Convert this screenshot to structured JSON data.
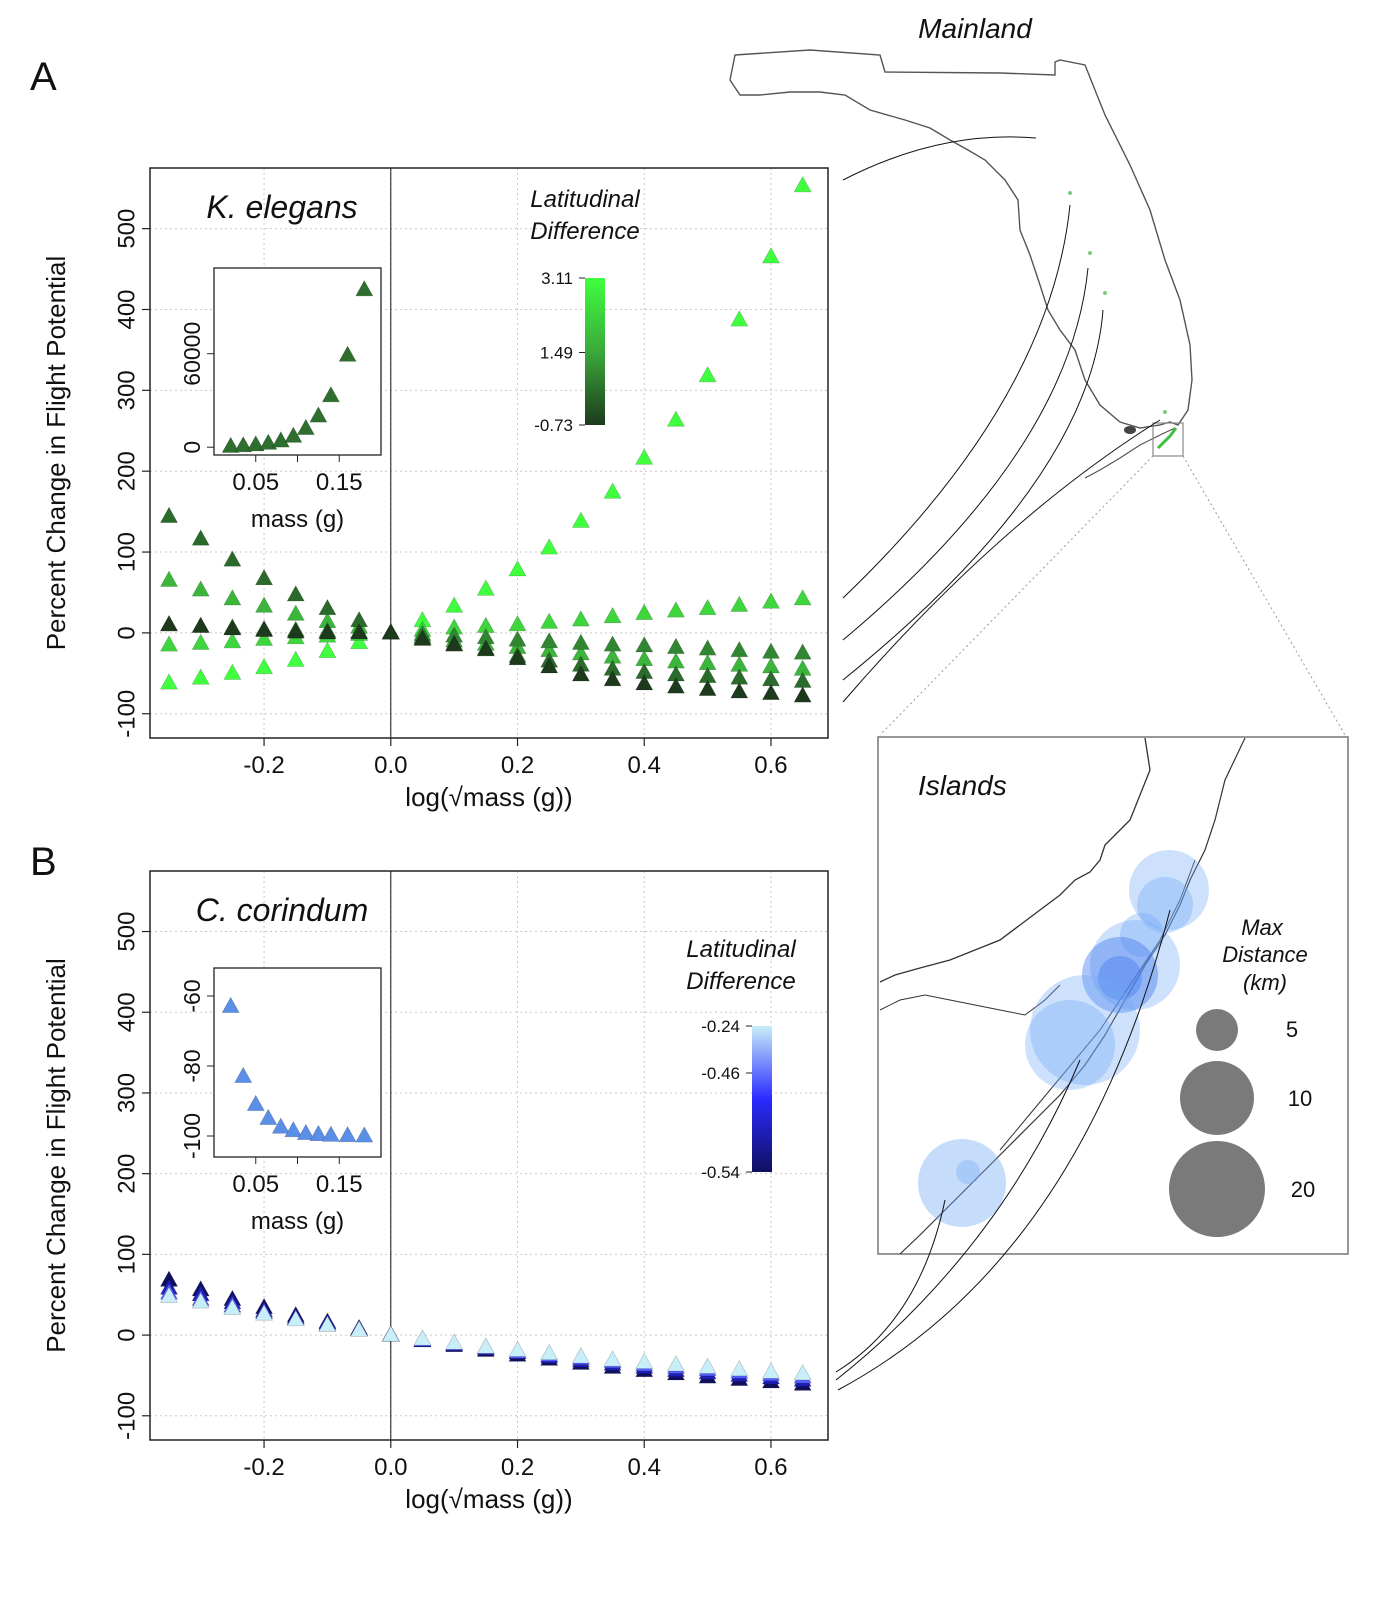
{
  "panels": {
    "A": {
      "letter": "A"
    },
    "B": {
      "letter": "B"
    }
  },
  "map": {
    "mainland_label": "Mainland",
    "islands_label": "Islands",
    "legend": {
      "title_lines": [
        "Max",
        "Distance",
        "(km)"
      ],
      "sizes": [
        {
          "label": "5",
          "value": 5
        },
        {
          "label": "10",
          "value": 10
        },
        {
          "label": "20",
          "value": 20
        }
      ]
    },
    "circle_color": "#6fa8f5"
  },
  "chart_data": [
    {
      "id": "A",
      "type": "scatter",
      "species": "K. elegans",
      "xlabel": "log(√mass (g))",
      "ylabel": "Percent Change in Flight Potential",
      "xlim": [
        -0.38,
        0.69
      ],
      "ylim": [
        -130,
        575
      ],
      "xticks": [
        "-0.2",
        "0.0",
        "0.2",
        "0.4",
        "0.6"
      ],
      "yticks": [
        "-100",
        "0",
        "100",
        "200",
        "300",
        "400",
        "500"
      ],
      "grid": true,
      "colorbar": {
        "title_lines": [
          "Latitudinal",
          "Difference"
        ],
        "tick_labels": [
          "3.11",
          "1.49",
          "-0.73"
        ],
        "range": [
          -0.73,
          3.11
        ],
        "colors": [
          "#1d3a1d",
          "#3aa93a",
          "#3fff3f"
        ]
      },
      "x": [
        -0.35,
        -0.3,
        -0.25,
        -0.2,
        -0.15,
        -0.1,
        -0.05,
        0,
        0.05,
        0.1,
        0.15,
        0.2,
        0.25,
        0.3,
        0.35,
        0.4,
        0.45,
        0.5,
        0.55,
        0.6,
        0.65
      ],
      "series": [
        {
          "latdiff": 3.11,
          "values": [
            -62,
            -56,
            -50,
            -43,
            -34,
            -23,
            -12,
            0,
            15,
            33,
            54,
            78,
            105,
            138,
            174,
            216,
            263,
            318,
            387,
            465,
            553
          ]
        },
        {
          "latdiff": 2.2,
          "values": [
            -15,
            -13,
            -11,
            -8,
            -6,
            -4,
            -2,
            0,
            3,
            6,
            8,
            10,
            13,
            16,
            20,
            24,
            27,
            30,
            34,
            38,
            42
          ]
        },
        {
          "latdiff": 1.49,
          "values": [
            65,
            53,
            42,
            33,
            23,
            14,
            7,
            0,
            -5,
            -10,
            -14,
            -18,
            -22,
            -26,
            -30,
            -33,
            -36,
            -38,
            -40,
            -42,
            -45
          ]
        },
        {
          "latdiff": 0.6,
          "values": [
            10,
            8,
            6,
            4,
            3,
            2,
            1,
            0,
            -2,
            -4,
            -6,
            -9,
            -11,
            -13,
            -15,
            -16,
            -18,
            -20,
            -22,
            -24,
            -25
          ]
        },
        {
          "latdiff": 0.1,
          "values": [
            144,
            116,
            90,
            67,
            47,
            30,
            15,
            0,
            -7,
            -14,
            -21,
            -29,
            -35,
            -40,
            -45,
            -49,
            -52,
            -54,
            -56,
            -58,
            -60
          ]
        },
        {
          "latdiff": -0.73,
          "values": [
            10,
            8,
            5,
            3,
            1,
            0,
            0,
            0,
            -8,
            -15,
            -20,
            -32,
            -42,
            -52,
            -58,
            -63,
            -67,
            -70,
            -73,
            -75,
            -78
          ]
        }
      ],
      "inset": {
        "type": "scatter",
        "xlabel": "mass (g)",
        "xlim": [
          0.0,
          0.2
        ],
        "ylim": [
          -5000,
          115000
        ],
        "xticks": [
          "0.05",
          "0.15"
        ],
        "yticks": [
          "0",
          "60000"
        ],
        "x": [
          0.02,
          0.035,
          0.05,
          0.065,
          0.08,
          0.095,
          0.11,
          0.125,
          0.14,
          0.16,
          0.18
        ],
        "values": [
          500,
          900,
          1500,
          2500,
          4000,
          7000,
          12000,
          20000,
          33000,
          59000,
          101000
        ]
      }
    },
    {
      "id": "B",
      "type": "scatter",
      "species": "C. corindum",
      "xlabel": "log(√mass (g))",
      "ylabel": "Percent Change in Flight Potential",
      "xlim": [
        -0.38,
        0.69
      ],
      "ylim": [
        -130,
        575
      ],
      "xticks": [
        "-0.2",
        "0.0",
        "0.2",
        "0.4",
        "0.6"
      ],
      "yticks": [
        "-100",
        "0",
        "100",
        "200",
        "300",
        "400",
        "500"
      ],
      "grid": true,
      "colorbar": {
        "title_lines": [
          "Latitudinal",
          "Difference"
        ],
        "tick_labels": [
          "-0.24",
          "-0.46",
          "-0.54"
        ],
        "range": [
          -0.54,
          -0.24
        ],
        "colors": [
          "#101060",
          "#2a2aff",
          "#c8eefa"
        ]
      },
      "x": [
        -0.35,
        -0.3,
        -0.25,
        -0.2,
        -0.15,
        -0.1,
        -0.05,
        0,
        0.05,
        0.1,
        0.15,
        0.2,
        0.25,
        0.3,
        0.35,
        0.4,
        0.45,
        0.5,
        0.55,
        0.6,
        0.65
      ],
      "series": [
        {
          "latdiff": -0.54,
          "values": [
            68,
            56,
            44,
            34,
            24,
            16,
            8,
            0,
            -7,
            -13,
            -19,
            -25,
            -30,
            -35,
            -40,
            -44,
            -48,
            -52,
            -55,
            -58,
            -61
          ]
        },
        {
          "latdiff": -0.46,
          "values": [
            58,
            50,
            40,
            30,
            22,
            15,
            7,
            0,
            -7,
            -12,
            -17,
            -22,
            -27,
            -32,
            -36,
            -40,
            -44,
            -47,
            -50,
            -53,
            -56
          ]
        },
        {
          "latdiff": -0.35,
          "values": [
            52,
            44,
            36,
            28,
            20,
            13,
            7,
            0,
            -6,
            -11,
            -16,
            -21,
            -25,
            -29,
            -33,
            -37,
            -40,
            -43,
            -46,
            -49,
            -52
          ]
        },
        {
          "latdiff": -0.24,
          "values": [
            48,
            41,
            33,
            26,
            19,
            12,
            6,
            0,
            -5,
            -10,
            -15,
            -19,
            -23,
            -27,
            -31,
            -34,
            -37,
            -40,
            -43,
            -46,
            -48
          ]
        }
      ],
      "inset": {
        "type": "scatter",
        "xlabel": "mass (g)",
        "xlim": [
          0.0,
          0.2
        ],
        "ylim": [
          -106,
          -52
        ],
        "xticks": [
          "0.05",
          "0.15"
        ],
        "yticks": [
          "-60",
          "-80",
          "-100"
        ],
        "x": [
          0.02,
          0.035,
          0.05,
          0.065,
          0.08,
          0.095,
          0.11,
          0.125,
          0.14,
          0.16,
          0.18
        ],
        "values": [
          -63,
          -83,
          -91,
          -95,
          -97.5,
          -98.5,
          -99.3,
          -99.6,
          -99.8,
          -99.9,
          -100
        ]
      }
    }
  ]
}
